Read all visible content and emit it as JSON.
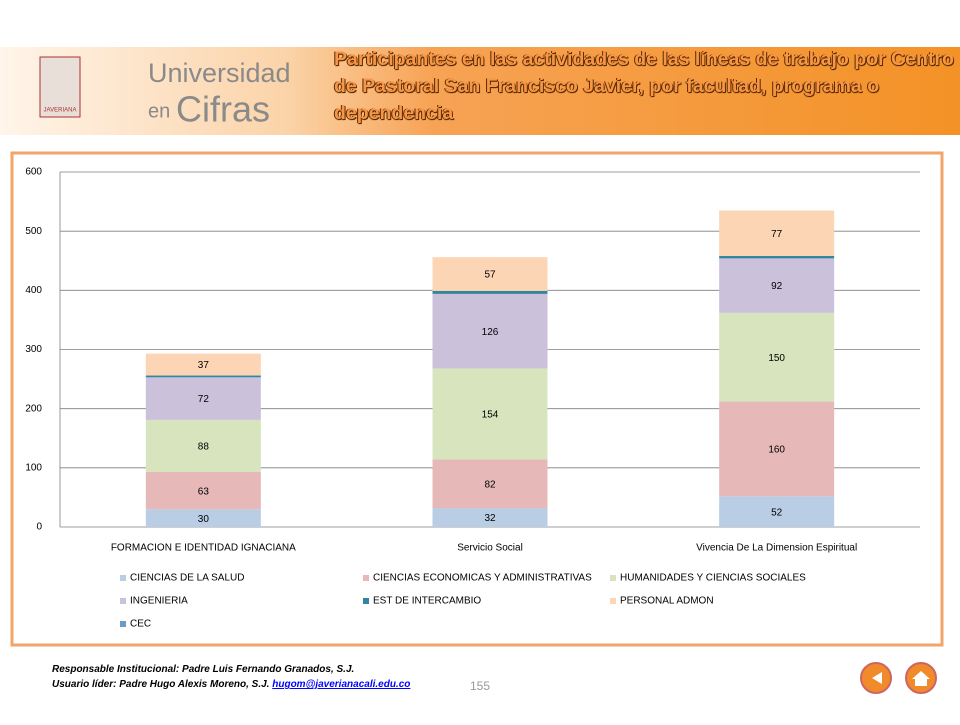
{
  "header": {
    "brand_top": "Universidad",
    "brand_en": "en",
    "brand_cifras": "Cifras",
    "logo_text": "JAVERIANA",
    "title": "Participantes en las actividades de las líneas de trabajo por Centro de Pastoral San Francisco Javier, por facultad, programa o dependencia"
  },
  "chart_data": {
    "type": "bar",
    "stacked": true,
    "categories": [
      "FORMACION E IDENTIDAD IGNACIANA",
      "Servicio Social",
      "Vivencia De La Dimension Espiritual"
    ],
    "series": [
      {
        "name": "CIENCIAS DE LA SALUD",
        "color": "#b9cde5",
        "values": [
          30,
          32,
          52
        ]
      },
      {
        "name": "CIENCIAS ECONOMICAS Y ADMINISTRATIVAS",
        "color": "#e6b9b8",
        "values": [
          63,
          82,
          160
        ]
      },
      {
        "name": "HUMANIDADES Y CIENCIAS SOCIALES",
        "color": "#d7e4bd",
        "values": [
          88,
          154,
          150
        ]
      },
      {
        "name": "INGENIERIA",
        "color": "#ccc1da",
        "values": [
          72,
          126,
          92
        ]
      },
      {
        "name": "EST DE INTERCAMBIO",
        "color": "#31859c",
        "values": [
          3,
          5,
          4
        ],
        "show_labels": false
      },
      {
        "name": "PERSONAL ADMON",
        "color": "#fcd5b5",
        "values": [
          37,
          57,
          77
        ]
      },
      {
        "name": "CEC",
        "color": "#6d9bc3",
        "values": [
          0,
          0,
          0
        ],
        "show_labels": false
      }
    ],
    "ylim": [
      0,
      600
    ],
    "yticks": [
      0,
      100,
      200,
      300,
      400,
      500,
      600
    ],
    "grid": true,
    "legend": "bottom"
  },
  "footer": {
    "responsible": "Responsable Institucional: Padre Luis Fernando Granados, S.J.",
    "user": "Usuario líder: Padre Hugo Alexis Moreno, S.J.",
    "email": "hugom@javerianacali.edu.co",
    "page": "155"
  }
}
